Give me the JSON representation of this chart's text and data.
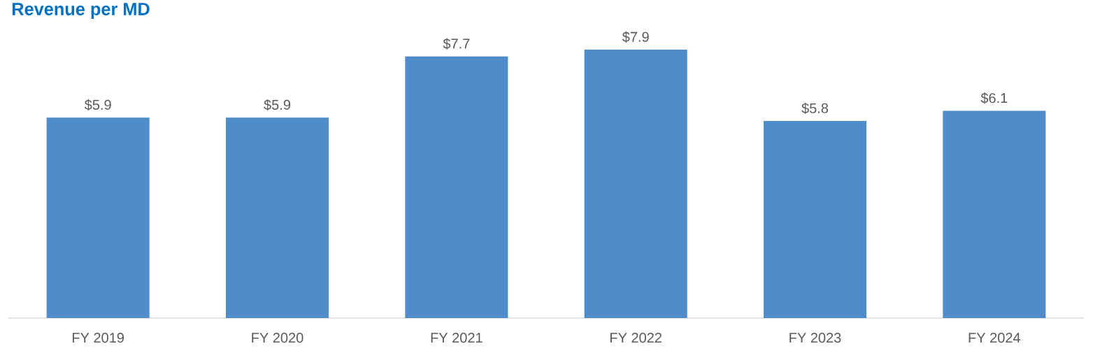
{
  "chart_data": {
    "type": "bar",
    "title": "Revenue per MD",
    "categories": [
      "FY 2019",
      "FY 2020",
      "FY 2021",
      "FY 2022",
      "FY 2023",
      "FY 2024"
    ],
    "values": [
      5.9,
      5.9,
      7.7,
      7.9,
      5.8,
      6.1
    ],
    "value_labels": [
      "$5.9",
      "$5.9",
      "$7.7",
      "$7.9",
      "$5.8",
      "$6.1"
    ],
    "color": "#4f8cc9"
  }
}
